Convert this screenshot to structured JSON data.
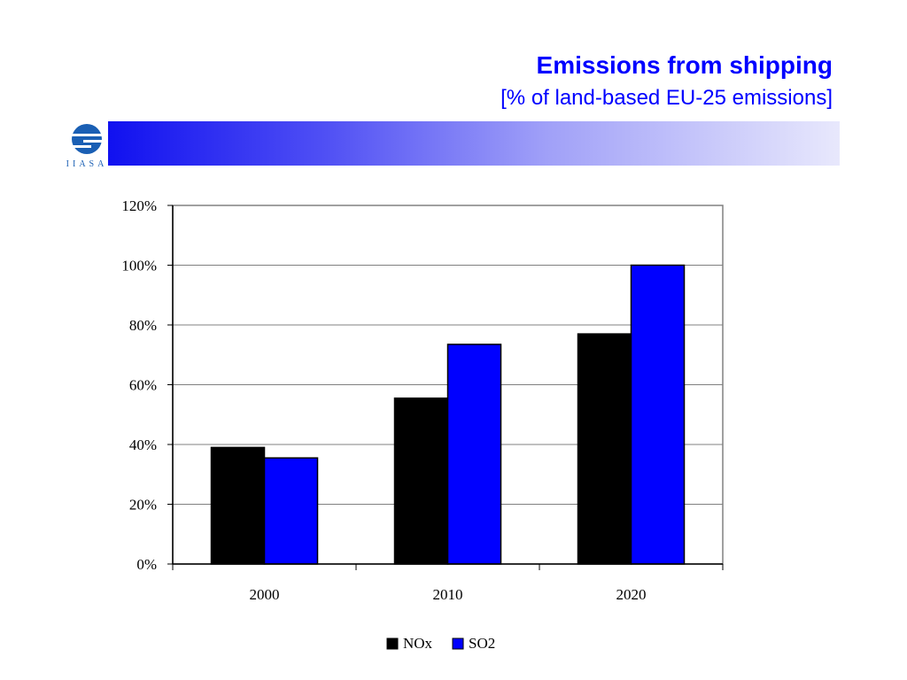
{
  "header": {
    "title": "Emissions from shipping",
    "subtitle": "[% of land-based EU-25 emissions]",
    "logo_text": "IIASA",
    "banner_gradient": [
      "#1010f0",
      "#e8e8fc"
    ]
  },
  "chart_data": {
    "type": "bar",
    "title": "",
    "xlabel": "",
    "ylabel": "",
    "categories": [
      "2000",
      "2010",
      "2020"
    ],
    "series": [
      {
        "name": "NOx",
        "values": [
          39,
          55.5,
          77
        ],
        "color": "#000000"
      },
      {
        "name": "SO2",
        "values": [
          35.5,
          73.5,
          100
        ],
        "color": "#0000ff"
      }
    ],
    "ylim": [
      0,
      120
    ],
    "yticks": [
      0,
      20,
      40,
      60,
      80,
      100,
      120
    ],
    "ytick_labels": [
      "0%",
      "20%",
      "40%",
      "60%",
      "80%",
      "100%",
      "120%"
    ],
    "grid": true,
    "legend_position": "bottom-center"
  }
}
